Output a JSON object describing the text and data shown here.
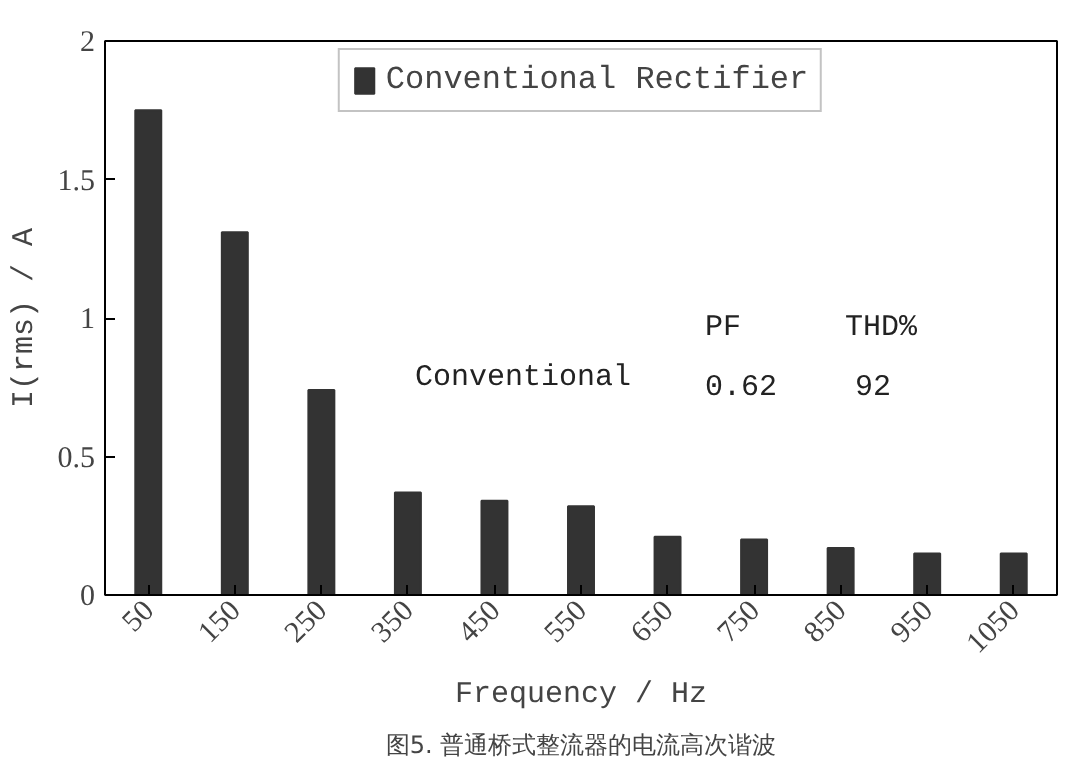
{
  "chart_data": {
    "type": "bar",
    "title": "图5. 普通桥式整流器的电流高次谐波",
    "xlabel": "Frequency / Hz",
    "ylabel": "I(rms) / A",
    "categories": [
      "50",
      "150",
      "250",
      "350",
      "450",
      "550",
      "650",
      "750",
      "850",
      "950",
      "1050"
    ],
    "series": [
      {
        "name": "Conventional Rectifier",
        "color": "#333333",
        "values": [
          1.75,
          1.31,
          0.74,
          0.37,
          0.34,
          0.32,
          0.21,
          0.2,
          0.17,
          0.15,
          0.15
        ]
      }
    ],
    "ylim": [
      0,
      2
    ],
    "yticks": [
      0,
      0.5,
      1,
      1.5,
      2
    ],
    "grid": false,
    "legend": "top",
    "annotations": [
      "PF",
      "THD%",
      "Conventional",
      "0.62",
      "92"
    ]
  }
}
